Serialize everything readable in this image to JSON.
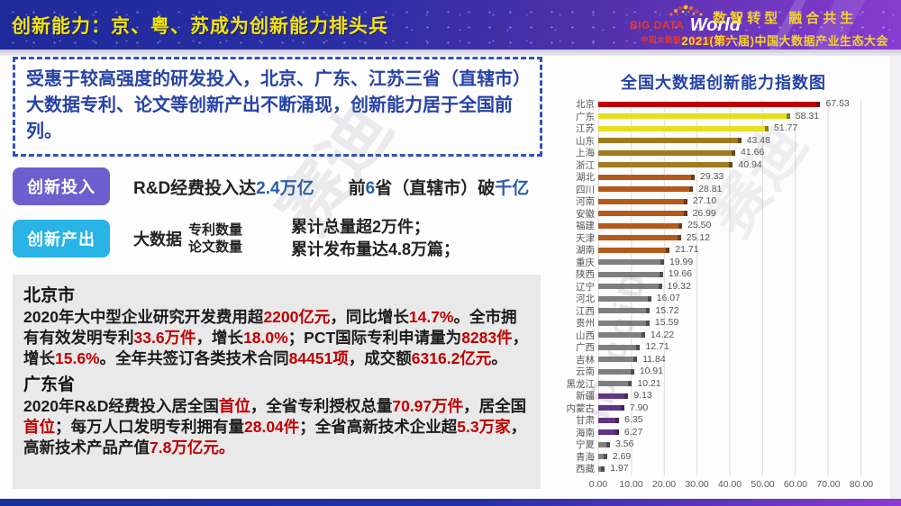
{
  "colors": {
    "header_bg_left": "#1e2a9a",
    "header_bg_right": "#8a3bd0",
    "header_title_yellow": "#f2e50a",
    "slogan_yellow": "#f6d22e",
    "logo_red": "#e23a2e",
    "box_blue": "#2743a6",
    "badge_purple": "#6c5fce",
    "badge_cyan": "#29b3e6",
    "highlight_blue": "#2a5caa",
    "highlight_red": "#c00000",
    "panel_gray": "#e9e9e9",
    "chart_title_blue": "#2743a6"
  },
  "header": {
    "title": "创新能力：京、粤、苏成为创新能力排头兵",
    "logo": {
      "line1_left": "BIG DATA",
      "line1_right": "World",
      "line2": "中国大数据产业生态大会"
    },
    "slogan_line1": "数智转型 融合共生",
    "slogan_line2": "2021(第六届)中国大数据产业生态大会"
  },
  "summary_box": {
    "text": "受惠于较高强度的研发投入，北京、广东、江苏三省（直辖市）大数据专利、论文等创新产出不断涌现，创新能力居于全国前列。"
  },
  "investment_row": {
    "badge": "创新投入",
    "text1_prefix": "R&D经费投入达",
    "text1_highlight": "2.4万亿",
    "text2_part1": "前",
    "text2_highlight1": "6",
    "text2_part2": "省（直辖市）破",
    "text2_highlight2": "千亿"
  },
  "output_row": {
    "badge": "创新产出",
    "label": "大数据",
    "stack_line1": "专利数量",
    "stack_line2": "论文数量",
    "result_line1": "累计总量超2万件；",
    "result_line2": "累计发布量达4.8万篇；"
  },
  "detail_panel": {
    "beijing": {
      "title": "北京市",
      "segments": [
        {
          "t": "2020年大中型企业研究开发费用超"
        },
        {
          "t": "2200亿元",
          "hl": true
        },
        {
          "t": "，同比增长"
        },
        {
          "t": "14.7%",
          "hl": true
        },
        {
          "t": "。全市拥有有效发明专利"
        },
        {
          "t": "33.6万件",
          "hl": true
        },
        {
          "t": "，增长"
        },
        {
          "t": "18.0%",
          "hl": true
        },
        {
          "t": "；PCT国际专利申请量为"
        },
        {
          "t": "8283件",
          "hl": true
        },
        {
          "t": "，增长"
        },
        {
          "t": "15.6%",
          "hl": true
        },
        {
          "t": "。全年共签订各类技术合同"
        },
        {
          "t": "84451项",
          "hl": true
        },
        {
          "t": "，成交额"
        },
        {
          "t": "6316.2亿元",
          "hl": true
        },
        {
          "t": "。"
        }
      ]
    },
    "guangdong": {
      "title": "广东省",
      "segments": [
        {
          "t": "2020年R&D经费投入居全国"
        },
        {
          "t": "首位",
          "hl": true
        },
        {
          "t": "，全省专利授权总量"
        },
        {
          "t": "70.97万件",
          "hl": true
        },
        {
          "t": "，居全国"
        },
        {
          "t": "首位",
          "hl": true
        },
        {
          "t": "；每万人口发明专利拥有量"
        },
        {
          "t": "28.04件",
          "hl": true
        },
        {
          "t": "；全省高新技术企业超"
        },
        {
          "t": "5.3万家",
          "hl": true
        },
        {
          "t": "，高新技术产品产值"
        },
        {
          "t": "7.8万亿元。",
          "hl": true
        }
      ]
    }
  },
  "watermarks": [
    "赛迪",
    "iD.cciD",
    "赛迪"
  ],
  "chart_data": {
    "type": "bar",
    "orientation": "horizontal",
    "title": "全国大数据创新能力指数图",
    "xlabel": "",
    "ylabel": "",
    "xlim": [
      0,
      80
    ],
    "grid": true,
    "legend": "none",
    "value_label_decimals": 2,
    "x_ticks": [
      "0.00",
      "10.00",
      "20.00",
      "30.00",
      "40.00",
      "50.00",
      "60.00",
      "70.00",
      "80.00"
    ],
    "bars": [
      {
        "label": "北京",
        "value": 67.53,
        "color": "#c00000"
      },
      {
        "label": "广东",
        "value": 58.31,
        "color": "#e6de1f"
      },
      {
        "label": "江苏",
        "value": 51.77,
        "color": "#e6de1f"
      },
      {
        "label": "山东",
        "value": 43.48,
        "color": "#a2791e"
      },
      {
        "label": "上海",
        "value": 41.66,
        "color": "#a2791e"
      },
      {
        "label": "浙江",
        "value": 40.94,
        "color": "#a2791e"
      },
      {
        "label": "湖北",
        "value": 29.33,
        "color": "#b45a1d"
      },
      {
        "label": "四川",
        "value": 28.81,
        "color": "#b45a1d"
      },
      {
        "label": "河南",
        "value": 27.1,
        "color": "#b45a1d"
      },
      {
        "label": "安徽",
        "value": 26.99,
        "color": "#b45a1d"
      },
      {
        "label": "福建",
        "value": 25.5,
        "color": "#b45a1d"
      },
      {
        "label": "天津",
        "value": 25.12,
        "color": "#b45a1d"
      },
      {
        "label": "湖南",
        "value": 21.71,
        "color": "#b45a1d"
      },
      {
        "label": "重庆",
        "value": 19.99,
        "color": "#7f7f7f"
      },
      {
        "label": "陕西",
        "value": 19.66,
        "color": "#7f7f7f"
      },
      {
        "label": "辽宁",
        "value": 19.32,
        "color": "#7f7f7f"
      },
      {
        "label": "河北",
        "value": 16.07,
        "color": "#7f7f7f"
      },
      {
        "label": "江西",
        "value": 15.72,
        "color": "#7f7f7f"
      },
      {
        "label": "贵州",
        "value": 15.59,
        "color": "#7f7f7f"
      },
      {
        "label": "山西",
        "value": 14.22,
        "color": "#7f7f7f"
      },
      {
        "label": "广西",
        "value": 12.71,
        "color": "#7f7f7f"
      },
      {
        "label": "吉林",
        "value": 11.84,
        "color": "#7f7f7f"
      },
      {
        "label": "云南",
        "value": 10.91,
        "color": "#7f7f7f"
      },
      {
        "label": "黑龙江",
        "value": 10.21,
        "color": "#7f7f7f"
      },
      {
        "label": "新疆",
        "value": 9.13,
        "color": "#5e3585"
      },
      {
        "label": "内蒙古",
        "value": 7.9,
        "color": "#5e3585"
      },
      {
        "label": "甘肃",
        "value": 6.35,
        "color": "#5e3585"
      },
      {
        "label": "海南",
        "value": 6.27,
        "color": "#5e3585"
      },
      {
        "label": "宁夏",
        "value": 3.56,
        "color": "#7f7f7f"
      },
      {
        "label": "青海",
        "value": 2.69,
        "color": "#7f7f7f"
      },
      {
        "label": "西藏",
        "value": 1.97,
        "color": "#7f7f7f"
      }
    ]
  }
}
